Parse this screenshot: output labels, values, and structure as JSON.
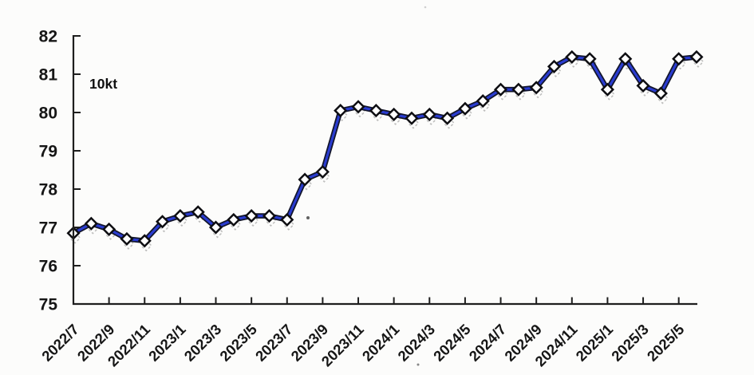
{
  "page": {
    "background_color": "#fcfcfb"
  },
  "chart_data": {
    "type": "line",
    "unit_label": "10kt",
    "x": [
      "2022/7",
      "2022/8",
      "2022/9",
      "2022/10",
      "2022/11",
      "2022/12",
      "2023/1",
      "2023/2",
      "2023/3",
      "2023/4",
      "2023/5",
      "2023/6",
      "2023/7",
      "2023/8",
      "2023/9",
      "2023/10",
      "2023/11",
      "2023/12",
      "2024/1",
      "2024/2",
      "2024/3",
      "2024/4",
      "2024/5",
      "2024/6",
      "2024/7",
      "2024/8",
      "2024/9",
      "2024/10",
      "2024/11",
      "2024/12",
      "2025/1",
      "2025/2",
      "2025/3",
      "2025/4",
      "2025/5",
      "2025/6"
    ],
    "values": [
      76.85,
      77.1,
      76.95,
      76.7,
      76.65,
      77.15,
      77.3,
      77.4,
      77.0,
      77.2,
      77.3,
      77.3,
      77.2,
      78.25,
      78.45,
      80.05,
      80.15,
      80.05,
      79.95,
      79.85,
      79.95,
      79.85,
      80.1,
      80.3,
      80.6,
      80.6,
      80.65,
      81.2,
      81.45,
      81.4,
      80.6,
      81.4,
      80.7,
      80.5,
      81.4,
      81.45
    ],
    "x_tick_labels": [
      "2022/7",
      "2022/9",
      "2022/11",
      "2023/1",
      "2023/3",
      "2023/5",
      "2023/7",
      "2023/9",
      "2023/11",
      "2024/1",
      "2024/3",
      "2024/5",
      "2024/7",
      "2024/9",
      "2024/11",
      "2025/1",
      "2025/3",
      "2025/5"
    ],
    "y_ticks": [
      75,
      76,
      77,
      78,
      79,
      80,
      81,
      82
    ],
    "ylim": [
      75,
      82
    ],
    "grid": "off",
    "legend": "none",
    "styles": {
      "line_core_color": "#2a3cd0",
      "line_outline_color": "#12152c",
      "marker_shape": "diamond",
      "marker_fill": "#ffffff",
      "marker_stroke": "#0e0e12",
      "ghost_color": "#8b8b8b",
      "axis_color": "#1e1e1e",
      "text_color": "#161616"
    }
  }
}
